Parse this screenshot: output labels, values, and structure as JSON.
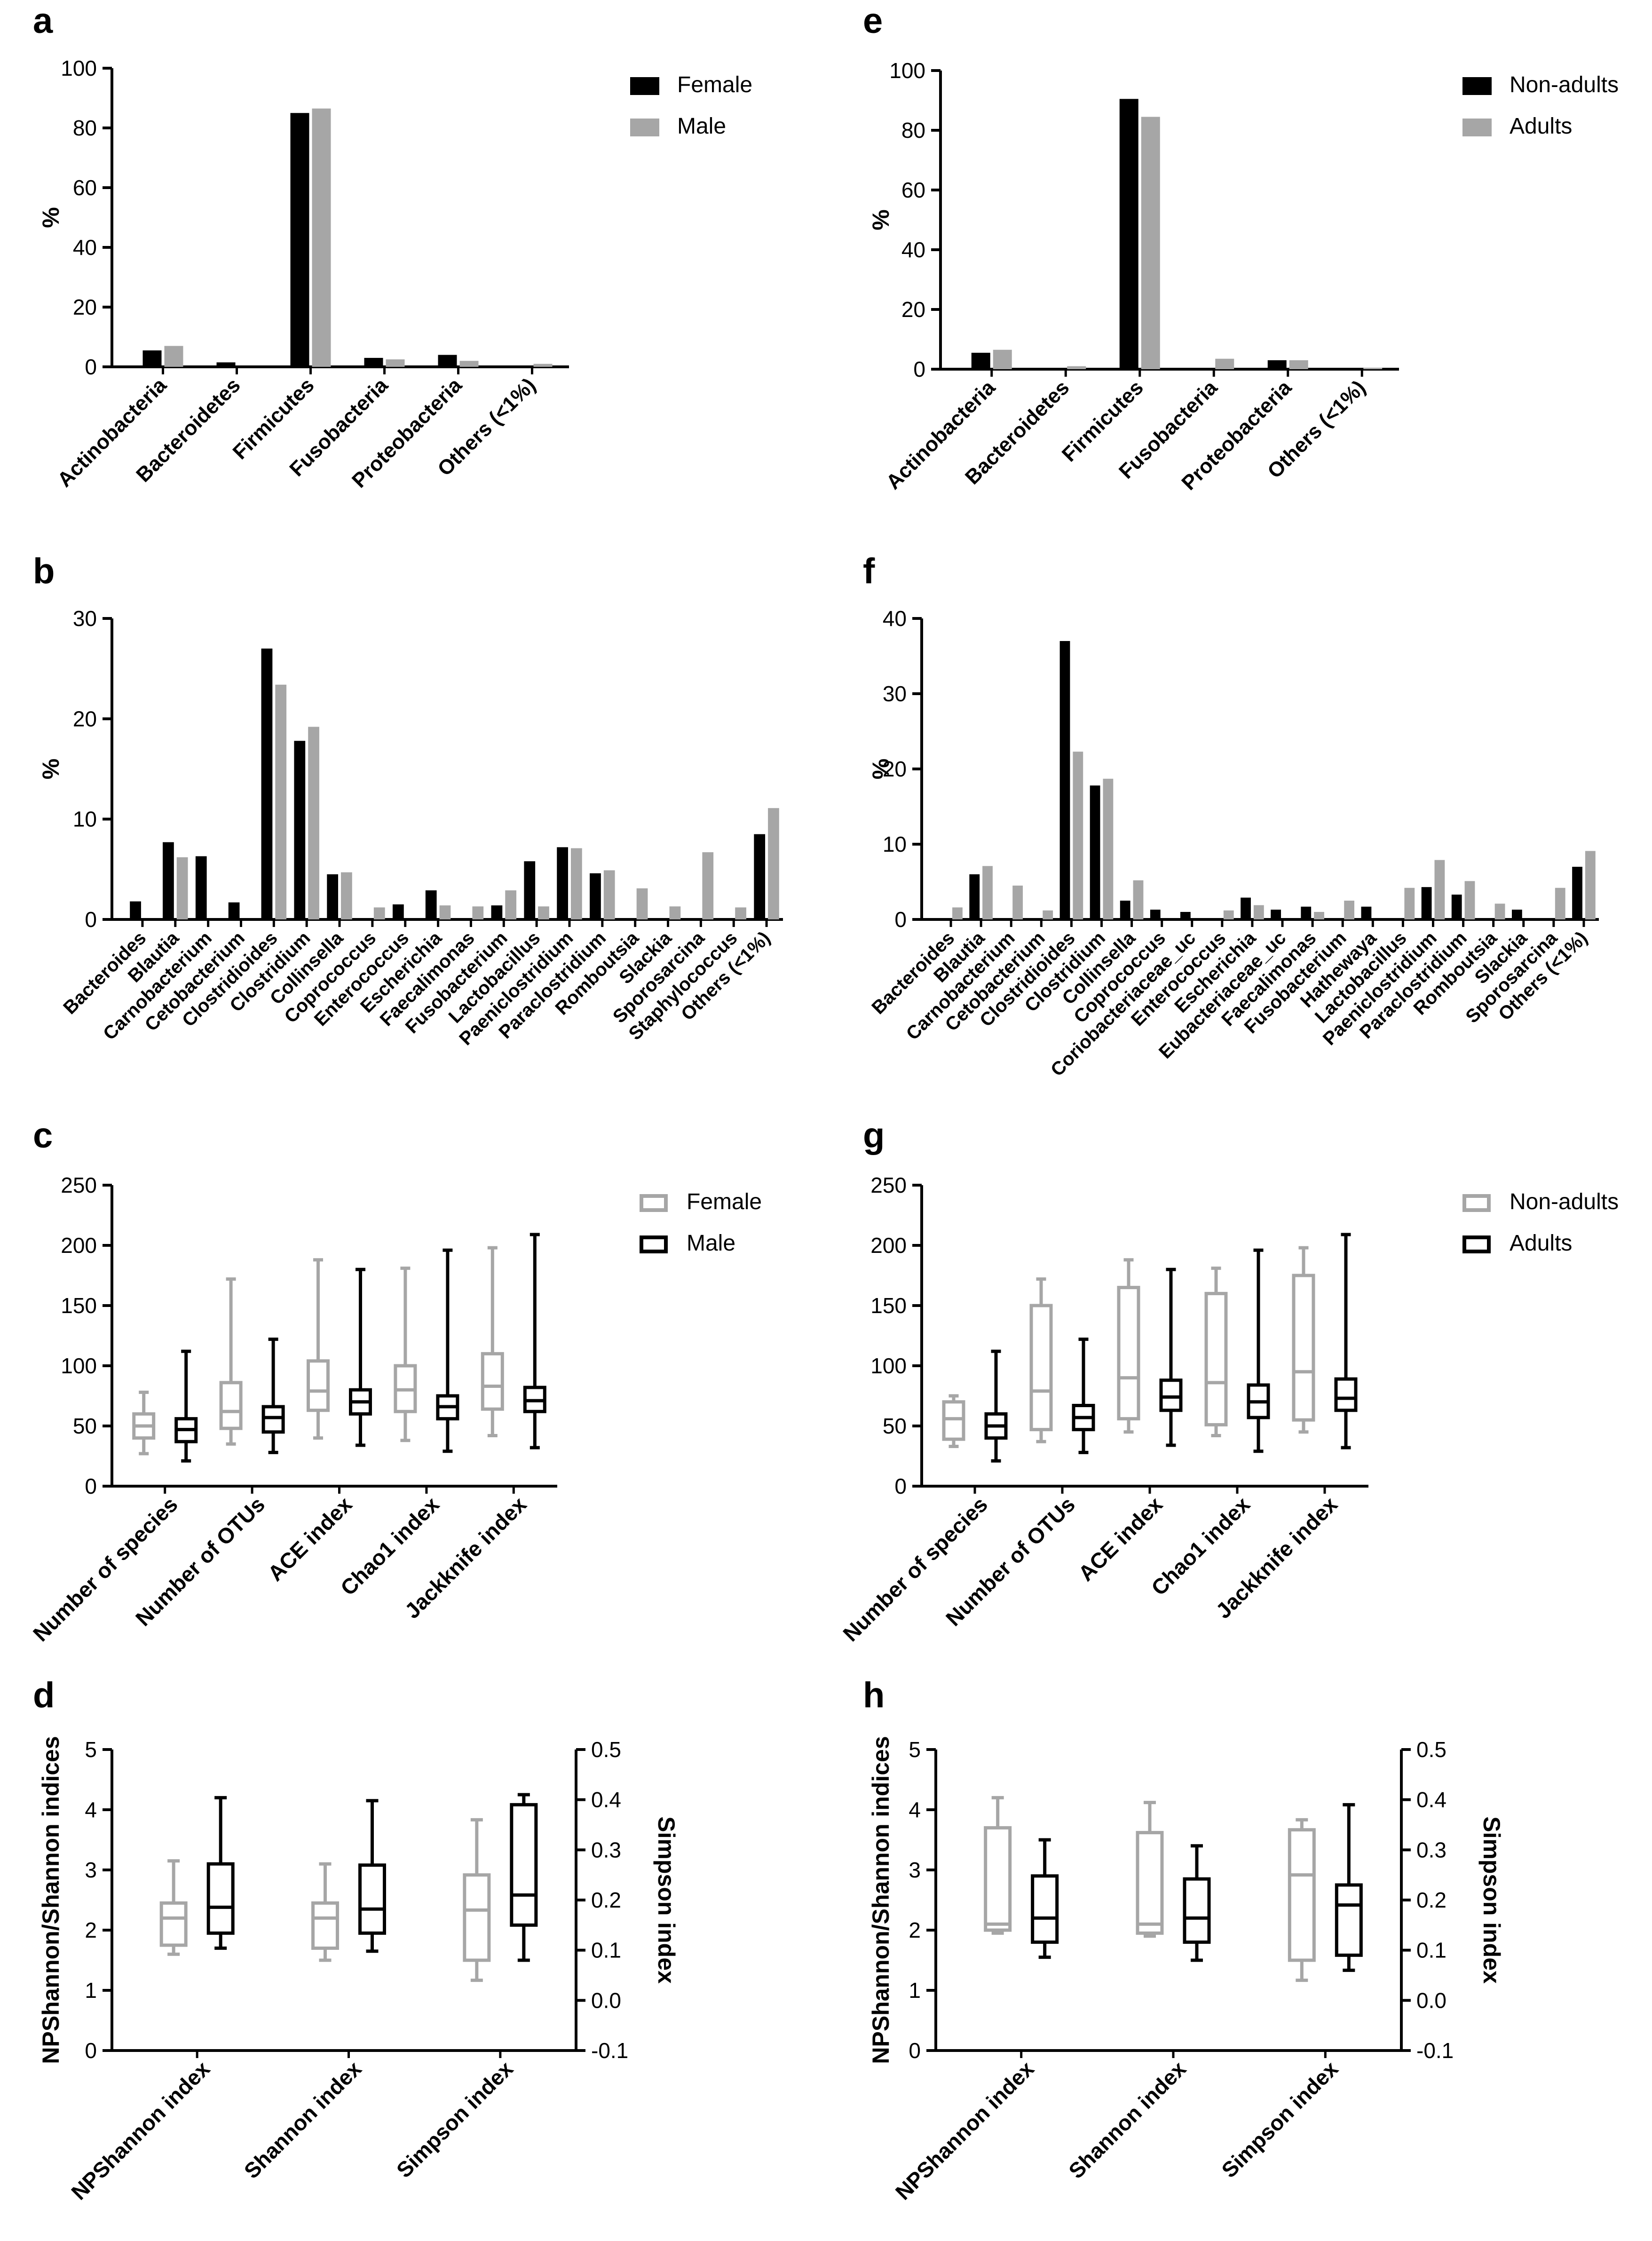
{
  "colors": {
    "dark": "#000000",
    "grey": "#a6a6a6"
  },
  "chart_data": [
    {
      "panel": "a",
      "type": "bar",
      "ylabel": "%",
      "ylim": [
        0,
        100
      ],
      "yticks": [
        0,
        20,
        40,
        60,
        80,
        100
      ],
      "categories": [
        "Actinobacteria",
        "Bacteroidetes",
        "Firmicutes",
        "Fusobacteria",
        "Proteobacteria",
        "Others (<1%)"
      ],
      "series": [
        {
          "name": "Female",
          "color": "dark",
          "values": [
            5.5,
            1.5,
            85.0,
            3.0,
            4.0,
            0.3
          ]
        },
        {
          "name": "Male",
          "color": "grey",
          "values": [
            7.0,
            0,
            86.5,
            2.5,
            2.0,
            1.0
          ]
        }
      ]
    },
    {
      "panel": "e",
      "type": "bar",
      "ylabel": "%",
      "ylim": [
        0,
        100
      ],
      "yticks": [
        0,
        20,
        40,
        60,
        80,
        100
      ],
      "categories": [
        "Actinobacteria",
        "Bacteroidetes",
        "Firmicutes",
        "Fusobacteria",
        "Proteobacteria",
        "Others (<1%)"
      ],
      "series": [
        {
          "name": "Non-adults",
          "color": "dark",
          "values": [
            5.5,
            0,
            90.5,
            0,
            3.0,
            0
          ]
        },
        {
          "name": "Adults",
          "color": "grey",
          "values": [
            6.5,
            1.0,
            84.5,
            3.5,
            3.0,
            0.5
          ]
        }
      ]
    },
    {
      "panel": "b",
      "type": "bar",
      "ylabel": "%",
      "ylim": [
        0,
        30
      ],
      "yticks": [
        0,
        10,
        20,
        30
      ],
      "categories": [
        "Bacteroides",
        "Blautia",
        "Carnobacterium",
        "Cetobacterium",
        "Clostridioides",
        "Clostridium",
        "Collinsella",
        "Coprococcus",
        "Enterococcus",
        "Escherichia",
        "Faecalimonas",
        "Fusobacterium",
        "Lactobacillus",
        "Paeniclostridium",
        "Paraclostridium",
        "Romboutsia",
        "Slackia",
        "Sporosarcina",
        "Staphylococcus",
        "Others (<1%)"
      ],
      "series": [
        {
          "name": "Female",
          "color": "dark",
          "values": [
            1.8,
            7.7,
            6.3,
            1.7,
            27.0,
            17.8,
            4.5,
            0,
            1.5,
            2.9,
            0,
            1.4,
            5.8,
            7.2,
            4.6,
            0,
            0,
            0,
            0,
            8.5
          ]
        },
        {
          "name": "Male",
          "color": "grey",
          "values": [
            0,
            6.2,
            0,
            0,
            23.4,
            19.2,
            4.7,
            1.2,
            0,
            1.4,
            1.3,
            2.9,
            1.3,
            7.1,
            4.9,
            3.1,
            1.3,
            6.7,
            1.2,
            11.1
          ]
        }
      ]
    },
    {
      "panel": "f",
      "type": "bar",
      "ylabel": "%",
      "ylim": [
        0,
        40
      ],
      "yticks": [
        0,
        10,
        20,
        30,
        40
      ],
      "categories": [
        "Bacteroides",
        "Blautia",
        "Carnobacterium",
        "Cetobacterium",
        "Clostridioides",
        "Clostridium",
        "Collinsella",
        "Coprococcus",
        "Coriobacteriaceae_uc",
        "Enterococcus",
        "Escherichia",
        "Eubacteriaceae_uc",
        "Faecalimonas",
        "Fusobacterium",
        "Hathewaya",
        "Lactobacillus",
        "Paeniclostridium",
        "Paraclostridium",
        "Romboutsia",
        "Slackia",
        "Sporosarcina",
        "Others (<1%)"
      ],
      "series": [
        {
          "name": "Non-adults",
          "color": "dark",
          "values": [
            0,
            6.0,
            0,
            0,
            37.0,
            17.8,
            2.5,
            1.3,
            1.0,
            0,
            2.9,
            1.3,
            1.7,
            0,
            1.7,
            0,
            4.3,
            3.3,
            0,
            1.3,
            0,
            7.0
          ]
        },
        {
          "name": "Adults",
          "color": "grey",
          "values": [
            1.6,
            7.1,
            4.5,
            1.2,
            22.3,
            18.7,
            5.2,
            0,
            0,
            1.2,
            1.9,
            0,
            1.0,
            2.5,
            0,
            4.2,
            7.9,
            5.1,
            2.1,
            0,
            4.2,
            9.1
          ]
        }
      ]
    },
    {
      "panel": "c",
      "type": "box",
      "ylabel": "",
      "ylim": [
        0,
        250
      ],
      "yticks": [
        0,
        50,
        100,
        150,
        200,
        250
      ],
      "categories": [
        "Number of species",
        "Number of OTUs",
        "ACE index",
        "Chao1 index",
        "Jackknife index"
      ],
      "series": [
        {
          "name": "Female",
          "color": "grey",
          "boxes": [
            [
              27,
              40,
              50,
              60,
              78
            ],
            [
              35,
              48,
              62,
              86,
              172
            ],
            [
              40,
              63,
              79,
              104,
              188
            ],
            [
              38,
              62,
              80,
              100,
              181
            ],
            [
              42,
              64,
              83,
              110,
              198
            ]
          ]
        },
        {
          "name": "Male",
          "color": "dark",
          "boxes": [
            [
              21,
              37,
              47,
              56,
              112
            ],
            [
              28,
              45,
              57,
              66,
              122
            ],
            [
              34,
              60,
              70,
              80,
              180
            ],
            [
              29,
              56,
              66,
              75,
              196
            ],
            [
              32,
              62,
              71,
              82,
              209
            ]
          ]
        }
      ]
    },
    {
      "panel": "g",
      "type": "box",
      "ylabel": "",
      "ylim": [
        0,
        250
      ],
      "yticks": [
        0,
        50,
        100,
        150,
        200,
        250
      ],
      "categories": [
        "Number of species",
        "Number of OTUs",
        "ACE index",
        "Chao1 index",
        "Jackknife index"
      ],
      "series": [
        {
          "name": "Non-adults",
          "color": "grey",
          "boxes": [
            [
              33,
              39,
              56,
              70,
              75
            ],
            [
              37,
              47,
              79,
              150,
              172
            ],
            [
              45,
              56,
              90,
              165,
              188
            ],
            [
              42,
              51,
              86,
              160,
              181
            ],
            [
              45,
              55,
              95,
              175,
              198
            ]
          ]
        },
        {
          "name": "Adults",
          "color": "dark",
          "boxes": [
            [
              21,
              40,
              50,
              60,
              112
            ],
            [
              28,
              47,
              57,
              67,
              122
            ],
            [
              34,
              63,
              74,
              88,
              180
            ],
            [
              29,
              57,
              70,
              84,
              196
            ],
            [
              32,
              63,
              73,
              89,
              209
            ]
          ]
        }
      ]
    },
    {
      "panel": "d",
      "type": "box",
      "ylabel": "NPShannon/Shannon indices",
      "y2label": "Simpson index",
      "ylim": [
        0,
        5
      ],
      "yticks": [
        0,
        1,
        2,
        3,
        4,
        5
      ],
      "y2lim": [
        -0.1,
        0.5
      ],
      "y2ticks": [
        -0.1,
        0.0,
        0.1,
        0.2,
        0.3,
        0.4,
        0.5
      ],
      "categories": [
        "NPShannon index",
        "Shannon index",
        "Simpson index"
      ],
      "series": [
        {
          "name": "Female",
          "color": "grey",
          "boxes": [
            [
              1.6,
              1.75,
              2.2,
              2.45,
              3.15
            ],
            [
              1.5,
              1.7,
              2.2,
              2.45,
              3.1
            ],
            [
              0.04,
              0.08,
              0.18,
              0.25,
              0.36
            ]
          ]
        },
        {
          "name": "Male",
          "color": "dark",
          "boxes": [
            [
              1.7,
              1.95,
              2.38,
              3.1,
              4.2
            ],
            [
              1.65,
              1.95,
              2.35,
              3.08,
              4.15
            ],
            [
              0.08,
              0.15,
              0.21,
              0.39,
              0.41
            ]
          ]
        }
      ]
    },
    {
      "panel": "h",
      "type": "box",
      "ylabel": "NPShannon/Shannon indices",
      "y2label": "Simpson index",
      "ylim": [
        0,
        5
      ],
      "yticks": [
        0,
        1,
        2,
        3,
        4,
        5
      ],
      "y2lim": [
        -0.1,
        0.5
      ],
      "y2ticks": [
        -0.1,
        0.0,
        0.1,
        0.2,
        0.3,
        0.4,
        0.5
      ],
      "categories": [
        "NPShannon index",
        "Shannon index",
        "Simpson index"
      ],
      "series": [
        {
          "name": "Non-adults",
          "color": "grey",
          "boxes": [
            [
              1.95,
              2.0,
              2.1,
              3.7,
              4.2
            ],
            [
              1.9,
              1.95,
              2.1,
              3.62,
              4.12
            ],
            [
              0.04,
              0.08,
              0.25,
              0.34,
              0.36
            ]
          ]
        },
        {
          "name": "Adults",
          "color": "dark",
          "boxes": [
            [
              1.55,
              1.8,
              2.2,
              2.9,
              3.5
            ],
            [
              1.5,
              1.8,
              2.2,
              2.85,
              3.4
            ],
            [
              0.06,
              0.09,
              0.19,
              0.23,
              0.39
            ]
          ]
        }
      ]
    }
  ]
}
